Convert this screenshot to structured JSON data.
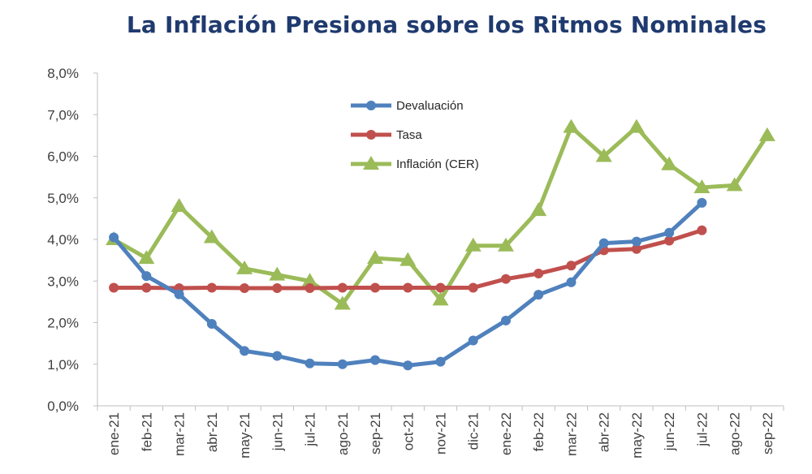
{
  "chart_data": {
    "type": "line",
    "title": "La Inflación Presiona sobre los Ritmos Nominales",
    "xlabel": "",
    "ylabel": "",
    "ylim": [
      0,
      8
    ],
    "y_ticks": [
      "0,0%",
      "1,0%",
      "2,0%",
      "3,0%",
      "4,0%",
      "5,0%",
      "6,0%",
      "7,0%",
      "8,0%"
    ],
    "y_tick_values": [
      0,
      1,
      2,
      3,
      4,
      5,
      6,
      7,
      8
    ],
    "categories": [
      "ene-21",
      "feb-21",
      "mar-21",
      "abr-21",
      "may-21",
      "jun-21",
      "jul-21",
      "ago-21",
      "sep-21",
      "oct-21",
      "nov-21",
      "dic-21",
      "ene-22",
      "feb-22",
      "mar-22",
      "abr-22",
      "may-22",
      "jun-22",
      "jul-22",
      "ago-22",
      "sep-22"
    ],
    "grid": false,
    "legend_position": "top-center",
    "series": [
      {
        "name": "Devaluación",
        "color": "#4f81bd",
        "marker": "circle",
        "values": [
          4.05,
          3.12,
          2.68,
          1.97,
          1.32,
          1.2,
          1.02,
          1.0,
          1.1,
          0.97,
          1.06,
          1.57,
          2.05,
          2.67,
          2.97,
          3.91,
          3.95,
          4.16,
          4.88,
          null,
          null
        ]
      },
      {
        "name": "Tasa",
        "color": "#c0504d",
        "marker": "circle",
        "values": [
          2.84,
          2.84,
          2.83,
          2.84,
          2.83,
          2.83,
          2.83,
          2.84,
          2.84,
          2.84,
          2.84,
          2.84,
          3.05,
          3.18,
          3.37,
          3.74,
          3.77,
          3.97,
          4.22,
          null,
          null
        ]
      },
      {
        "name": "Inflación (CER)",
        "color": "#9bbb59",
        "marker": "triangle",
        "values": [
          4.0,
          3.55,
          4.8,
          4.05,
          3.3,
          3.15,
          3.0,
          2.45,
          3.55,
          3.5,
          2.55,
          3.85,
          3.85,
          4.7,
          6.7,
          6.0,
          6.7,
          5.8,
          5.25,
          5.3,
          6.5
        ]
      }
    ]
  }
}
